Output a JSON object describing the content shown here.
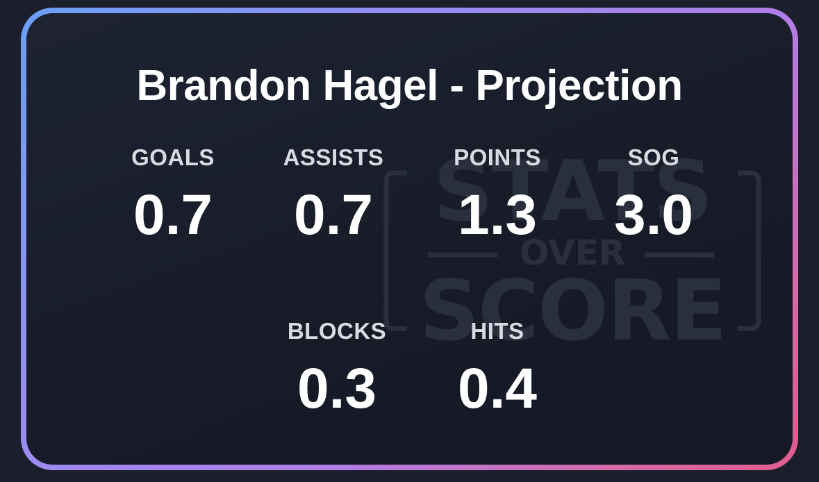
{
  "card": {
    "title": "Brandon Hagel - Projection",
    "watermark": {
      "line1": "STATS",
      "line2": "OVER",
      "line3": "SCORE"
    },
    "stats": [
      {
        "label": "GOALS",
        "value": "0.7"
      },
      {
        "label": "ASSISTS",
        "value": "0.7"
      },
      {
        "label": "POINTS",
        "value": "1.3"
      },
      {
        "label": "SOG",
        "value": "3.0"
      },
      {
        "label": "BLOCKS",
        "value": "0.3"
      },
      {
        "label": "HITS",
        "value": "0.4"
      }
    ]
  },
  "colors": {
    "background": "#1b1f2c",
    "card": "#1b2030",
    "border_gradient": [
      "#6aa0f5",
      "#b07ee8",
      "#e05a8e"
    ],
    "text": "#ffffff",
    "label": "#d9dbe2",
    "watermark": "#2a2f3d"
  }
}
